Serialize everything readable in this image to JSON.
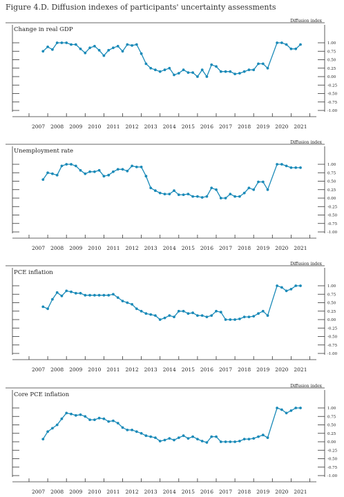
{
  "figure_title": "Figure 4.D. Diffusion indexes of participants' uncertainty assessments",
  "chart_data": [
    {
      "type": "line",
      "title": "Change in real GDP",
      "ylabel": "Diffusion index",
      "ylim": [
        -1.0,
        1.0
      ],
      "yticks": [
        "1.00",
        "0.75",
        "0.50",
        "0.25",
        "0.00",
        "-0.25",
        "-0.50",
        "-0.75",
        "-1.00"
      ],
      "xticks": [
        "2007",
        "2008",
        "2009",
        "2010",
        "2011",
        "2012",
        "2013",
        "2014",
        "2015",
        "2016",
        "2017",
        "2018",
        "2019",
        "2020",
        "2021"
      ],
      "xlim": [
        2007,
        2022
      ],
      "color": "#1a8ab8",
      "series": [
        {
          "x": [
            2007.75,
            2008.0,
            2008.25,
            2008.5,
            2008.75,
            2009.0,
            2009.25,
            2009.5,
            2009.75,
            2010.0,
            2010.25,
            2010.5,
            2010.75,
            2011.0,
            2011.25,
            2011.5,
            2011.75,
            2012.0,
            2012.25,
            2012.5,
            2012.75,
            2013.0,
            2013.25,
            2013.5,
            2013.75,
            2014.0,
            2014.25,
            2014.5,
            2014.75,
            2015.0,
            2015.25,
            2015.5,
            2015.75,
            2016.0,
            2016.25,
            2016.5,
            2016.75,
            2017.0,
            2017.25,
            2017.5,
            2017.75,
            2018.0,
            2018.25,
            2018.5,
            2018.75,
            2019.0,
            2019.25,
            2019.5,
            2019.75,
            2020.25,
            2020.5,
            2020.75,
            2021.0,
            2021.25,
            2021.5
          ],
          "y": [
            0.75,
            0.88,
            0.8,
            1.0,
            1.0,
            1.0,
            0.95,
            0.95,
            0.82,
            0.7,
            0.85,
            0.9,
            0.78,
            0.62,
            0.78,
            0.85,
            0.9,
            0.75,
            0.95,
            0.92,
            0.95,
            0.68,
            0.38,
            0.25,
            0.2,
            0.15,
            0.2,
            0.25,
            0.05,
            0.1,
            0.2,
            0.12,
            0.12,
            0.0,
            0.2,
            0.0,
            0.35,
            0.3,
            0.15,
            0.15,
            0.15,
            0.08,
            0.1,
            0.15,
            0.2,
            0.2,
            0.38,
            0.38,
            0.25,
            1.0,
            1.0,
            0.95,
            0.82,
            0.82,
            0.95
          ]
        }
      ]
    },
    {
      "type": "line",
      "title": "Unemployment rate",
      "ylabel": "Diffusion index",
      "ylim": [
        -1.0,
        1.0
      ],
      "yticks": [
        "1.00",
        "0.75",
        "0.50",
        "0.25",
        "0.00",
        "-0.25",
        "-0.50",
        "-0.75",
        "-1.00"
      ],
      "xticks": [
        "2007",
        "2008",
        "2009",
        "2010",
        "2011",
        "2012",
        "2013",
        "2014",
        "2015",
        "2016",
        "2017",
        "2018",
        "2019",
        "2020",
        "2021"
      ],
      "xlim": [
        2007,
        2022
      ],
      "color": "#1a8ab8",
      "series": [
        {
          "x": [
            2007.75,
            2008.0,
            2008.25,
            2008.5,
            2008.75,
            2009.0,
            2009.25,
            2009.5,
            2009.75,
            2010.0,
            2010.25,
            2010.5,
            2010.75,
            2011.0,
            2011.25,
            2011.5,
            2011.75,
            2012.0,
            2012.25,
            2012.5,
            2012.75,
            2013.0,
            2013.25,
            2013.5,
            2013.75,
            2014.0,
            2014.25,
            2014.5,
            2014.75,
            2015.0,
            2015.25,
            2015.5,
            2015.75,
            2016.0,
            2016.25,
            2016.5,
            2016.75,
            2017.0,
            2017.25,
            2017.5,
            2017.75,
            2018.0,
            2018.25,
            2018.5,
            2018.75,
            2019.0,
            2019.25,
            2019.5,
            2019.75,
            2020.25,
            2020.5,
            2020.75,
            2021.0,
            2021.25,
            2021.5
          ],
          "y": [
            0.55,
            0.75,
            0.72,
            0.68,
            0.95,
            1.0,
            1.0,
            0.95,
            0.82,
            0.72,
            0.78,
            0.78,
            0.82,
            0.65,
            0.68,
            0.78,
            0.85,
            0.85,
            0.8,
            0.95,
            0.92,
            0.92,
            0.65,
            0.3,
            0.22,
            0.15,
            0.12,
            0.12,
            0.22,
            0.1,
            0.1,
            0.12,
            0.05,
            0.05,
            0.02,
            0.05,
            0.3,
            0.25,
            0.0,
            0.0,
            0.12,
            0.05,
            0.05,
            0.15,
            0.3,
            0.25,
            0.48,
            0.48,
            0.25,
            1.0,
            1.0,
            0.95,
            0.9,
            0.9,
            0.9
          ]
        }
      ]
    },
    {
      "type": "line",
      "title": "PCE inflation",
      "ylabel": "Diffusion index",
      "ylim": [
        -1.0,
        1.0
      ],
      "yticks": [
        "1.00",
        "0.75",
        "0.50",
        "0.25",
        "0.00",
        "-0.25",
        "-0.50",
        "-0.75",
        "-1.00"
      ],
      "xticks": [
        "2007",
        "2008",
        "2009",
        "2010",
        "2011",
        "2012",
        "2013",
        "2014",
        "2015",
        "2016",
        "2017",
        "2018",
        "2019",
        "2020",
        "2021"
      ],
      "xlim": [
        2007,
        2022
      ],
      "color": "#1a8ab8",
      "series": [
        {
          "x": [
            2007.75,
            2008.0,
            2008.25,
            2008.5,
            2008.75,
            2009.0,
            2009.25,
            2009.5,
            2009.75,
            2010.0,
            2010.25,
            2010.5,
            2010.75,
            2011.0,
            2011.25,
            2011.5,
            2011.75,
            2012.0,
            2012.25,
            2012.5,
            2012.75,
            2013.0,
            2013.25,
            2013.5,
            2013.75,
            2014.0,
            2014.25,
            2014.5,
            2014.75,
            2015.0,
            2015.25,
            2015.5,
            2015.75,
            2016.0,
            2016.25,
            2016.5,
            2016.75,
            2017.0,
            2017.25,
            2017.5,
            2017.75,
            2018.0,
            2018.25,
            2018.5,
            2018.75,
            2019.0,
            2019.25,
            2019.5,
            2019.75,
            2020.25,
            2020.5,
            2020.75,
            2021.0,
            2021.25,
            2021.5
          ],
          "y": [
            0.38,
            0.32,
            0.6,
            0.8,
            0.7,
            0.85,
            0.82,
            0.78,
            0.78,
            0.72,
            0.72,
            0.72,
            0.72,
            0.72,
            0.72,
            0.75,
            0.65,
            0.55,
            0.5,
            0.45,
            0.32,
            0.25,
            0.18,
            0.15,
            0.12,
            0.0,
            0.05,
            0.12,
            0.08,
            0.25,
            0.25,
            0.18,
            0.2,
            0.12,
            0.12,
            0.08,
            0.12,
            0.25,
            0.22,
            0.0,
            0.0,
            0.0,
            0.02,
            0.08,
            0.08,
            0.1,
            0.18,
            0.25,
            0.12,
            1.0,
            0.95,
            0.85,
            0.9,
            1.0,
            1.0
          ]
        }
      ]
    },
    {
      "type": "line",
      "title": "Core PCE inflation",
      "ylabel": "Diffusion index",
      "ylim": [
        -1.0,
        1.0
      ],
      "yticks": [
        "1.00",
        "0.75",
        "0.50",
        "0.25",
        "0.00",
        "-0.25",
        "-0.50",
        "-0.75",
        "-1.00"
      ],
      "xticks": [
        "2007",
        "2008",
        "2009",
        "2010",
        "2011",
        "2012",
        "2013",
        "2014",
        "2015",
        "2016",
        "2017",
        "2018",
        "2019",
        "2020",
        "2021"
      ],
      "xlim": [
        2007,
        2022
      ],
      "color": "#1a8ab8",
      "series": [
        {
          "x": [
            2007.75,
            2008.0,
            2008.25,
            2008.5,
            2008.75,
            2009.0,
            2009.25,
            2009.5,
            2009.75,
            2010.0,
            2010.25,
            2010.5,
            2010.75,
            2011.0,
            2011.25,
            2011.5,
            2011.75,
            2012.0,
            2012.25,
            2012.5,
            2012.75,
            2013.0,
            2013.25,
            2013.5,
            2013.75,
            2014.0,
            2014.25,
            2014.5,
            2014.75,
            2015.0,
            2015.25,
            2015.5,
            2015.75,
            2016.0,
            2016.25,
            2016.5,
            2016.75,
            2017.0,
            2017.25,
            2017.5,
            2017.75,
            2018.0,
            2018.25,
            2018.5,
            2018.75,
            2019.0,
            2019.25,
            2019.5,
            2019.75,
            2020.25,
            2020.5,
            2020.75,
            2021.0,
            2021.25,
            2021.5
          ],
          "y": [
            0.08,
            0.3,
            0.4,
            0.5,
            0.68,
            0.85,
            0.82,
            0.78,
            0.8,
            0.75,
            0.65,
            0.65,
            0.7,
            0.68,
            0.6,
            0.62,
            0.55,
            0.42,
            0.35,
            0.35,
            0.3,
            0.25,
            0.18,
            0.15,
            0.12,
            0.02,
            0.05,
            0.1,
            0.05,
            0.12,
            0.18,
            0.1,
            0.15,
            0.08,
            0.02,
            -0.02,
            0.15,
            0.15,
            0.0,
            0.0,
            0.0,
            0.0,
            0.02,
            0.08,
            0.08,
            0.1,
            0.15,
            0.2,
            0.12,
            1.0,
            0.95,
            0.85,
            0.92,
            1.0,
            1.0
          ]
        }
      ]
    }
  ]
}
